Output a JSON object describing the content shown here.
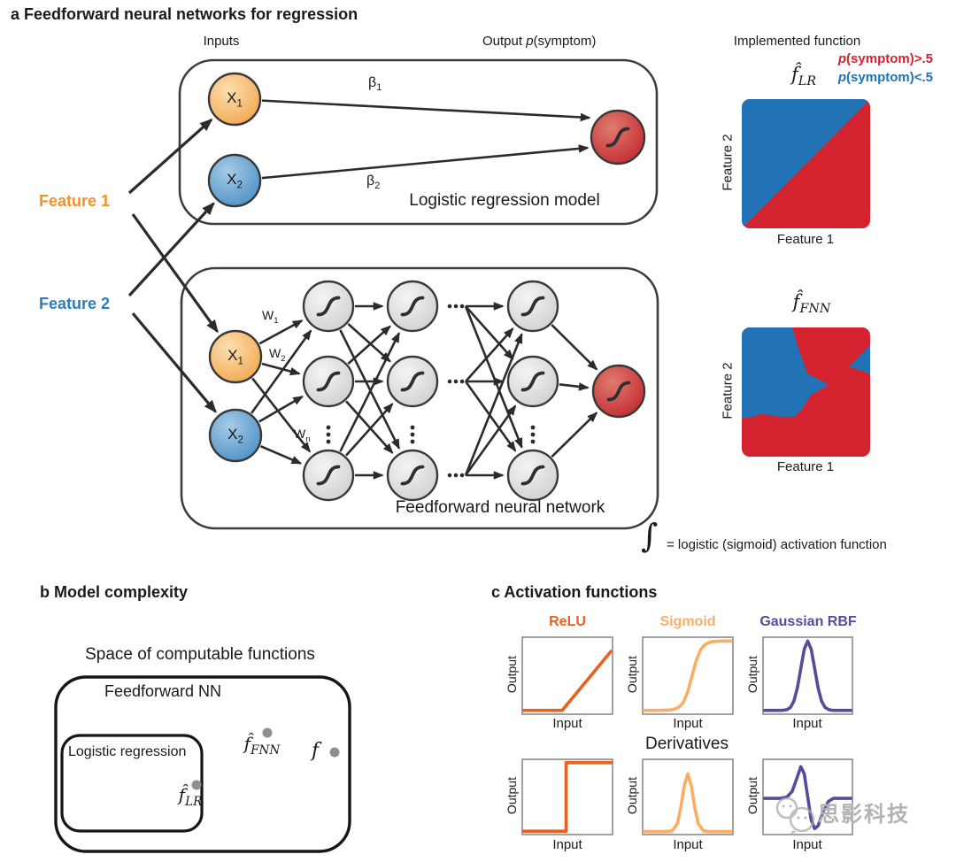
{
  "panel_a": {
    "title": "a Feedforward neural networks for regression",
    "inputs_label": "Inputs",
    "output_label": {
      "prefix": "Output ",
      "p": "p",
      "suffix": "(symptom)"
    },
    "feature1_label": "Feature 1",
    "feature2_label": "Feature 2",
    "node_x1": {
      "main": "X",
      "sub": "1"
    },
    "node_x2": {
      "main": "X",
      "sub": "2"
    },
    "beta1": {
      "main": "β",
      "sub": "1"
    },
    "beta2": {
      "main": "β",
      "sub": "2"
    },
    "w1": {
      "main": "W",
      "sub": "1"
    },
    "w2": {
      "main": "W",
      "sub": "2"
    },
    "wn": {
      "main": "W",
      "sub": "n"
    },
    "lr_box_label": "Logistic regression model",
    "fnn_box_label": "Feedforward neural network",
    "sigmoid_legend": {
      "glyph": "∫",
      "text": "= logistic (sigmoid) activation function"
    }
  },
  "implemented": {
    "header": "Implemented function",
    "legend_red": {
      "p": "p",
      "rest": "(symptom)>.5"
    },
    "legend_blue": {
      "p": "p",
      "rest": "(symptom)<.5"
    },
    "lr_title": {
      "main": "f̂",
      "sub": "LR"
    },
    "fnn_title": {
      "main": "f̂",
      "sub": "FNN"
    },
    "axis_x": "Feature 1",
    "axis_y": "Feature 2",
    "colors": {
      "red": "#D2232E",
      "blue": "#2173B5"
    }
  },
  "panel_b": {
    "title": "b Model complexity",
    "space_label": "Space of computable functions",
    "outer_label": "Feedforward NN",
    "inner_label": "Logistic regression",
    "f_fnn": {
      "main": "f̂",
      "sub": "FNN"
    },
    "f_true": {
      "main": "f",
      "sub": ""
    },
    "f_lr": {
      "main": "f̂",
      "sub": "LR"
    }
  },
  "panel_c": {
    "title": "c Activation functions",
    "derivatives_label": "Derivatives",
    "axis_output": "Output",
    "axis_input": "Input"
  },
  "watermark": {
    "text": "思影科技"
  },
  "colors": {
    "node_orange": "#F4AE5E",
    "node_blue": "#5796CA",
    "node_red": "#CC3336",
    "node_gray": "#DCDCDC",
    "line": "#2B2B2B",
    "feature1_label": "#F0922B",
    "feature2_label": "#2E7EBC"
  },
  "chart_data": [
    {
      "id": "relu",
      "type": "line",
      "title": "ReLU",
      "color": "#E8611F",
      "xlabel": "Input",
      "ylabel": "Output",
      "xlim": [
        0,
        1
      ],
      "ylim": [
        0,
        1
      ],
      "grid": false,
      "points": [
        [
          0,
          0.03
        ],
        [
          0.44,
          0.03
        ],
        [
          1,
          0.83
        ]
      ]
    },
    {
      "id": "sigmoid",
      "type": "line",
      "title": "Sigmoid",
      "color": "#FBAE63",
      "xlabel": "Input",
      "ylabel": "Output",
      "xlim": [
        0,
        1
      ],
      "ylim": [
        0,
        1
      ],
      "grid": false,
      "points": [
        [
          0,
          0.03
        ],
        [
          0.1,
          0.03
        ],
        [
          0.2,
          0.031
        ],
        [
          0.3,
          0.036
        ],
        [
          0.35,
          0.047
        ],
        [
          0.4,
          0.075
        ],
        [
          0.45,
          0.142
        ],
        [
          0.5,
          0.283
        ],
        [
          0.55,
          0.5
        ],
        [
          0.6,
          0.717
        ],
        [
          0.65,
          0.858
        ],
        [
          0.7,
          0.925
        ],
        [
          0.75,
          0.953
        ],
        [
          0.8,
          0.964
        ],
        [
          0.9,
          0.97
        ],
        [
          1,
          0.97
        ]
      ]
    },
    {
      "id": "rbf",
      "type": "line",
      "title": "Gaussian RBF",
      "color": "#5A4A9E",
      "xlabel": "Input",
      "ylabel": "Output",
      "xlim": [
        0,
        1
      ],
      "ylim": [
        0,
        1
      ],
      "grid": false,
      "points": [
        [
          0,
          0.03
        ],
        [
          0.2,
          0.03
        ],
        [
          0.26,
          0.04
        ],
        [
          0.3,
          0.071
        ],
        [
          0.34,
          0.157
        ],
        [
          0.38,
          0.335
        ],
        [
          0.42,
          0.6
        ],
        [
          0.46,
          0.86
        ],
        [
          0.5,
          0.97
        ],
        [
          0.54,
          0.86
        ],
        [
          0.58,
          0.6
        ],
        [
          0.62,
          0.335
        ],
        [
          0.66,
          0.157
        ],
        [
          0.7,
          0.071
        ],
        [
          0.75,
          0.037
        ],
        [
          0.8,
          0.03
        ],
        [
          1,
          0.03
        ]
      ]
    },
    {
      "id": "relu-derivative",
      "type": "line",
      "title": "ReLU derivative",
      "color": "#E8611F",
      "xlabel": "Input",
      "ylabel": "Output",
      "xlim": [
        0,
        1
      ],
      "ylim": [
        0,
        1
      ],
      "grid": false,
      "points": [
        [
          0,
          0.025
        ],
        [
          0.485,
          0.025
        ],
        [
          0.485,
          0.975
        ],
        [
          1,
          0.975
        ]
      ]
    },
    {
      "id": "sigmoid-derivative",
      "type": "line",
      "title": "Sigmoid derivative",
      "color": "#FBAE63",
      "xlabel": "Input",
      "ylabel": "Output",
      "xlim": [
        0,
        1
      ],
      "ylim": [
        0,
        1
      ],
      "grid": false,
      "points": [
        [
          0,
          0.02
        ],
        [
          0.25,
          0.02
        ],
        [
          0.32,
          0.03
        ],
        [
          0.38,
          0.13
        ],
        [
          0.42,
          0.35
        ],
        [
          0.46,
          0.66
        ],
        [
          0.5,
          0.82
        ],
        [
          0.54,
          0.66
        ],
        [
          0.58,
          0.35
        ],
        [
          0.62,
          0.13
        ],
        [
          0.68,
          0.03
        ],
        [
          0.75,
          0.02
        ],
        [
          1,
          0.02
        ]
      ]
    },
    {
      "id": "rbf-derivative",
      "type": "line",
      "title": "Gaussian RBF derivative",
      "color": "#5A4A9E",
      "xlabel": "Input",
      "ylabel": "Output",
      "xlim": [
        0,
        1
      ],
      "ylim": [
        0,
        1
      ],
      "grid": false,
      "points": [
        [
          0,
          0.48
        ],
        [
          0.18,
          0.48
        ],
        [
          0.26,
          0.5
        ],
        [
          0.32,
          0.58
        ],
        [
          0.38,
          0.78
        ],
        [
          0.42,
          0.92
        ],
        [
          0.46,
          0.82
        ],
        [
          0.5,
          0.5
        ],
        [
          0.54,
          0.18
        ],
        [
          0.58,
          0.06
        ],
        [
          0.62,
          0.1
        ],
        [
          0.68,
          0.3
        ],
        [
          0.74,
          0.44
        ],
        [
          0.8,
          0.48
        ],
        [
          1,
          0.48
        ]
      ]
    },
    {
      "id": "lr-decision",
      "type": "area",
      "title": "f̂_LR decision map",
      "xlabel": "Feature 1",
      "ylabel": "Feature 2",
      "note": "unit-square polygons, y increases downward; red = p(symptom)>.5, blue = p(symptom)<.5",
      "regions": [
        {
          "color": "red",
          "polygon": [
            [
              0,
              0
            ],
            [
              1,
              0
            ],
            [
              1,
              1
            ],
            [
              0,
              1
            ]
          ]
        },
        {
          "color": "blue",
          "polygon": [
            [
              0,
              0
            ],
            [
              1,
              0
            ],
            [
              0,
              1
            ]
          ]
        }
      ]
    },
    {
      "id": "fnn-decision",
      "type": "area",
      "title": "f̂_FNN decision map",
      "xlabel": "Feature 1",
      "ylabel": "Feature 2",
      "note": "unit-square polygons, y increases downward; red = p(symptom)>.5, blue = p(symptom)<.5",
      "regions": [
        {
          "color": "red",
          "polygon": [
            [
              0,
              0
            ],
            [
              1,
              0
            ],
            [
              1,
              1
            ],
            [
              0,
              1
            ]
          ]
        },
        {
          "color": "blue",
          "polygon": [
            [
              0,
              0
            ],
            [
              0.393,
              0
            ],
            [
              0.434,
              0.138
            ],
            [
              0.483,
              0.276
            ],
            [
              0.51,
              0.359
            ],
            [
              0.676,
              0.441
            ],
            [
              0.531,
              0.531
            ],
            [
              0.469,
              0.634
            ],
            [
              0.414,
              0.69
            ],
            [
              0.29,
              0.69
            ],
            [
              0.159,
              0.669
            ],
            [
              0.083,
              0.69
            ],
            [
              0,
              0.703
            ]
          ]
        },
        {
          "color": "blue",
          "polygon": [
            [
              1,
              0.138
            ],
            [
              1,
              0.359
            ],
            [
              0.834,
              0.303
            ]
          ]
        }
      ]
    }
  ]
}
